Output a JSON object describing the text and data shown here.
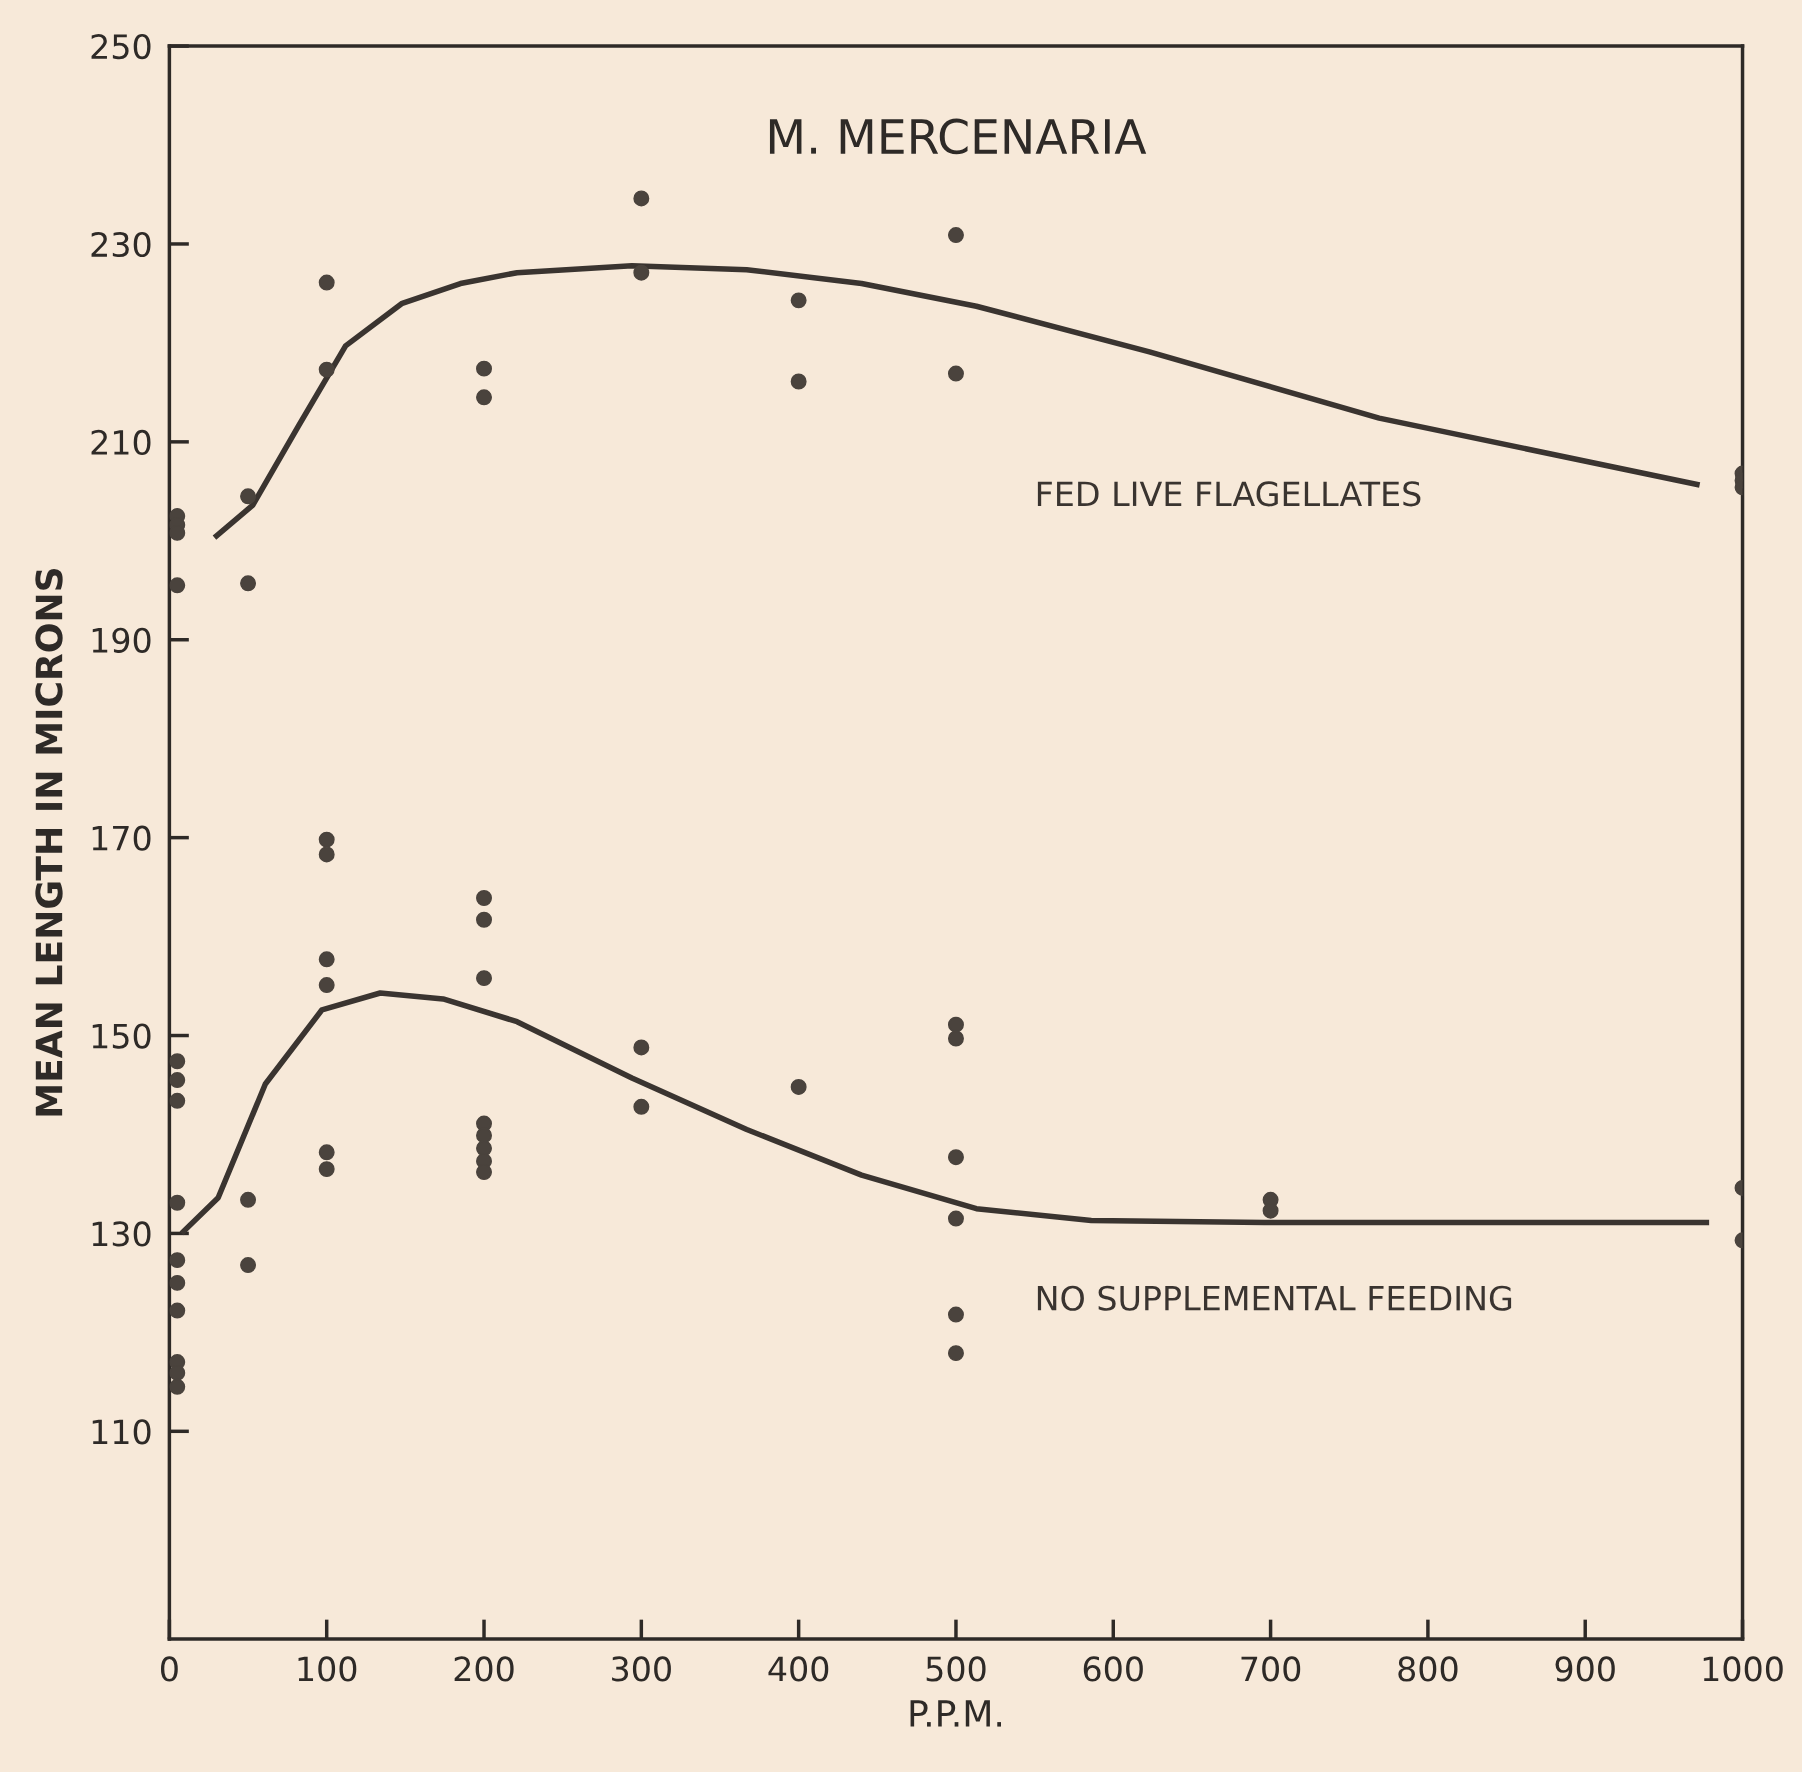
{
  "chart_data": {
    "type": "scatter",
    "title": "M. MERCENARIA",
    "xlabel": "P.P.M.",
    "ylabel": "MEAN LENGTH IN MICRONS",
    "xlim": [
      0,
      1000
    ],
    "xticks": [
      0,
      100,
      200,
      300,
      400,
      500,
      600,
      700,
      800,
      900,
      1000
    ],
    "ylim": [
      89,
      250
    ],
    "yticks": [
      110,
      130,
      150,
      170,
      190,
      210,
      230,
      250
    ],
    "grid": false,
    "series": [
      {
        "marker": "circle",
        "color": "#4a433d",
        "x": [
          5,
          5,
          5,
          5,
          50,
          50,
          100,
          100,
          200,
          200,
          300,
          300,
          400,
          400,
          500,
          500,
          1000,
          1000,
          1000
        ],
        "values": [
          202.5,
          201.6,
          200.8,
          195.5,
          204.5,
          195.7,
          226.1,
          217.3,
          217.4,
          214.5,
          234.6,
          227.1,
          224.3,
          216.1,
          230.9,
          216.9,
          206.8,
          206.1,
          205.4
        ]
      },
      {
        "type": "line",
        "name": "FED LIVE FLAGELLATES",
        "color": "#3a3430",
        "line_style": "solid",
        "x": [
          30,
          53,
          82,
          112,
          148,
          185,
          221,
          294,
          367,
          440,
          513,
          623,
          769,
          971
        ],
        "values": [
          200.5,
          203.6,
          211.6,
          219.7,
          224,
          226,
          227.1,
          227.8,
          227.4,
          226,
          223.7,
          219.1,
          212.4,
          205.7
        ]
      },
      {
        "marker": "circle",
        "color": "#4a433d",
        "x": [
          5,
          5,
          5,
          5,
          5,
          5,
          5,
          5,
          5,
          5,
          50,
          50,
          100,
          100,
          100,
          100,
          100,
          100,
          200,
          200,
          200,
          200,
          200,
          200,
          200,
          200,
          300,
          300,
          400,
          500,
          500,
          500,
          500,
          500,
          500,
          700,
          700,
          1000,
          1000
        ],
        "values": [
          147.4,
          145.5,
          143.4,
          133.1,
          127.3,
          125.0,
          122.2,
          117.0,
          115.9,
          114.5,
          133.4,
          126.8,
          169.8,
          168.3,
          157.7,
          155.1,
          138.2,
          136.5,
          163.9,
          161.7,
          155.8,
          141.1,
          139.9,
          138.6,
          137.3,
          136.2,
          148.8,
          142.8,
          144.8,
          151.1,
          149.7,
          137.7,
          131.5,
          121.8,
          117.9,
          133.4,
          132.3,
          134.6,
          129.3
        ]
      },
      {
        "type": "line",
        "name": "NO SUPPLEMENTAL FEEDING",
        "color": "#3a3430",
        "line_style": "solid",
        "x": [
          9,
          31,
          61,
          97,
          134,
          174,
          221,
          294,
          367,
          440,
          513,
          586,
          696,
          977
        ],
        "values": [
          130.2,
          133.6,
          145.1,
          152.6,
          154.3,
          153.7,
          151.4,
          145.7,
          140.5,
          135.9,
          132.5,
          131.3,
          131.1,
          131.1
        ]
      }
    ]
  }
}
